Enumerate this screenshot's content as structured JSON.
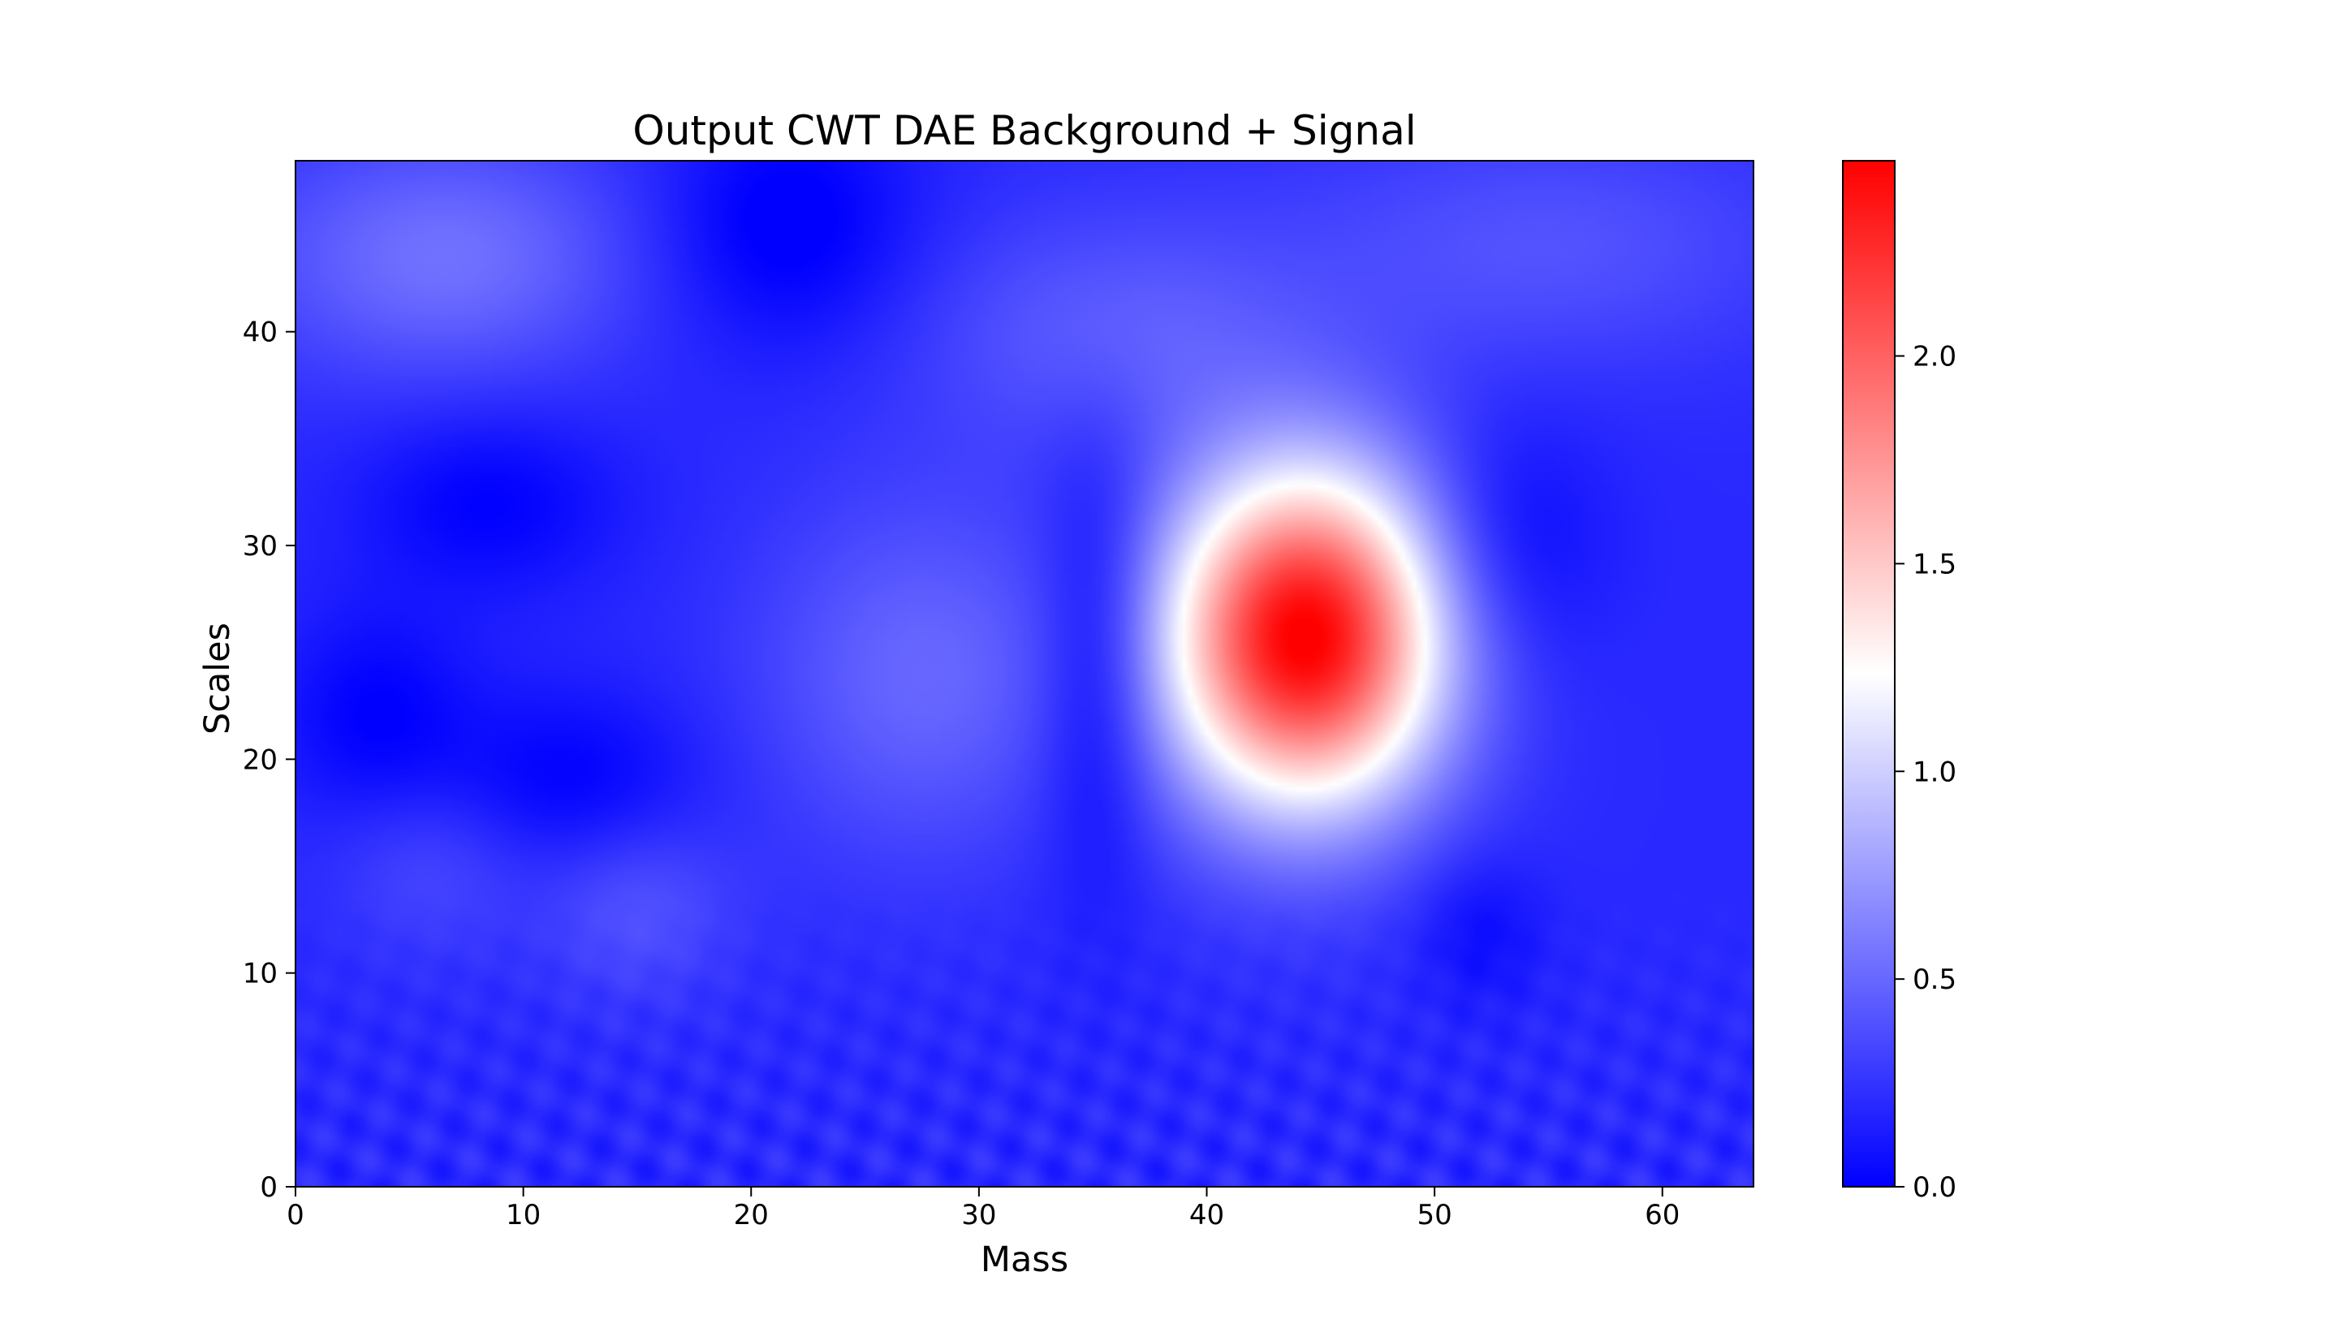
{
  "chart_data": {
    "type": "heatmap",
    "title": "Output CWT DAE Background + Signal",
    "xlabel": "Mass",
    "ylabel": "Scales",
    "xlim": [
      0,
      64
    ],
    "ylim": [
      0,
      48
    ],
    "xticks": [
      0,
      10,
      20,
      30,
      40,
      50,
      60
    ],
    "yticks": [
      0,
      10,
      20,
      30,
      40
    ],
    "colormap": "bwr",
    "colormap_colors": [
      "#0000ff",
      "#ffffff",
      "#ff0000"
    ],
    "color_range": [
      0,
      2.47
    ],
    "colorbar_ticks": [
      0.0,
      0.5,
      1.0,
      1.5,
      2.0
    ],
    "colorbar_tick_labels": [
      "0.0",
      "0.5",
      "1.0",
      "1.5",
      "2.0"
    ],
    "features": [
      {
        "kind": "peak",
        "x": 44.3,
        "y": 25.7,
        "sx": 4.3,
        "sy": 5.6,
        "value": 2.3
      },
      {
        "kind": "bump",
        "x": 6.5,
        "y": 43.5,
        "sx": 6.0,
        "sy": 4.0,
        "value": 0.35
      },
      {
        "kind": "bump",
        "x": 27.5,
        "y": 24.0,
        "sx": 5.0,
        "sy": 6.0,
        "value": 0.3
      },
      {
        "kind": "bump",
        "x": 36.0,
        "y": 40.0,
        "sx": 6.0,
        "sy": 4.0,
        "value": 0.25
      },
      {
        "kind": "bump",
        "x": 55.0,
        "y": 44.0,
        "sx": 8.0,
        "sy": 4.0,
        "value": 0.2
      },
      {
        "kind": "bump",
        "x": 15.0,
        "y": 13.0,
        "sx": 3.0,
        "sy": 3.0,
        "value": 0.2
      },
      {
        "kind": "bump",
        "x": 6.0,
        "y": 15.0,
        "sx": 3.0,
        "sy": 3.0,
        "value": 0.15
      },
      {
        "kind": "dip",
        "x": 21.5,
        "y": 45.0,
        "sx": 4.0,
        "sy": 4.0,
        "value": -0.25
      },
      {
        "kind": "dip",
        "x": 35.3,
        "y": 24.5,
        "sx": 1.8,
        "sy": 7.0,
        "value": -0.3
      },
      {
        "kind": "dip",
        "x": 8.5,
        "y": 32.0,
        "sx": 4.0,
        "sy": 3.0,
        "value": -0.2
      },
      {
        "kind": "dip",
        "x": 3.5,
        "y": 22.0,
        "sx": 3.0,
        "sy": 3.5,
        "value": -0.2
      },
      {
        "kind": "dip",
        "x": 12.0,
        "y": 19.0,
        "sx": 4.0,
        "sy": 3.0,
        "value": -0.2
      },
      {
        "kind": "dip",
        "x": 53.0,
        "y": 30.0,
        "sx": 3.0,
        "sy": 4.0,
        "value": -0.2
      },
      {
        "kind": "dip",
        "x": 52.0,
        "y": 12.0,
        "sx": 2.0,
        "sy": 2.5,
        "value": -0.15
      }
    ],
    "background_level": 0.2
  }
}
